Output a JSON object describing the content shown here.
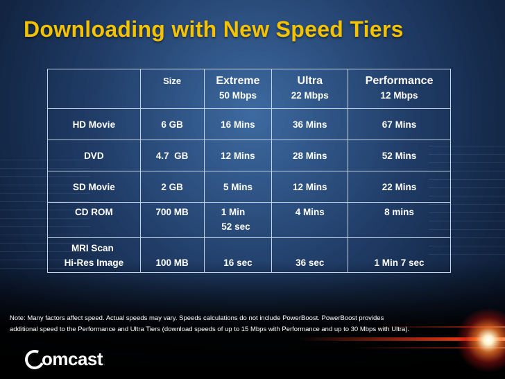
{
  "title": "Downloading with New Speed Tiers",
  "table": {
    "header": {
      "item": "",
      "size": "Size",
      "tiers": [
        {
          "name": "Extreme",
          "speed": "50 Mbps"
        },
        {
          "name": "Ultra",
          "speed": "22 Mbps"
        },
        {
          "name": "Performance",
          "speed": "12 Mbps"
        }
      ]
    },
    "rows": [
      {
        "item_line1": "HD Movie",
        "item_line2": "",
        "size": "6 GB",
        "extreme_line1": "16 Mins",
        "extreme_line2": "",
        "ultra": "36 Mins",
        "performance": "67 Mins"
      },
      {
        "item_line1": "DVD",
        "item_line2": "",
        "size": "4.7  GB",
        "extreme_line1": "12 Mins",
        "extreme_line2": "",
        "ultra": "28 Mins",
        "performance": "52 Mins"
      },
      {
        "item_line1": "SD Movie",
        "item_line2": "",
        "size": "2 GB",
        "extreme_line1": "5 Mins",
        "extreme_line2": "",
        "ultra": "12 Mins",
        "performance": "22 Mins"
      },
      {
        "item_line1": "CD ROM",
        "item_line2": "",
        "size": "700 MB",
        "extreme_line1": "1 Min",
        "extreme_line2": "52 sec",
        "ultra": "4 Mins",
        "performance": "8 mins"
      },
      {
        "item_line1": "MRI Scan",
        "item_line2": "Hi-Res Image",
        "size": "100 MB",
        "extreme_line1": "16 sec",
        "extreme_line2": "",
        "ultra": "36 sec",
        "performance": "1 Min 7 sec"
      }
    ]
  },
  "note_line1": "Note: Many factors affect speed. Actual speeds may vary. Speeds calculations do not include PowerBoost. PowerBoost provides",
  "note_line2": "additional speed to the Performance and Ultra Tiers (download speeds of up to 15 Mbps with Performance and up to 30 Mbps with Ultra).",
  "logo": {
    "text": "omcast",
    "trademark": "."
  },
  "colors": {
    "title": "#f3c300",
    "text": "#ffffff",
    "grid": "#c9d6e8"
  }
}
